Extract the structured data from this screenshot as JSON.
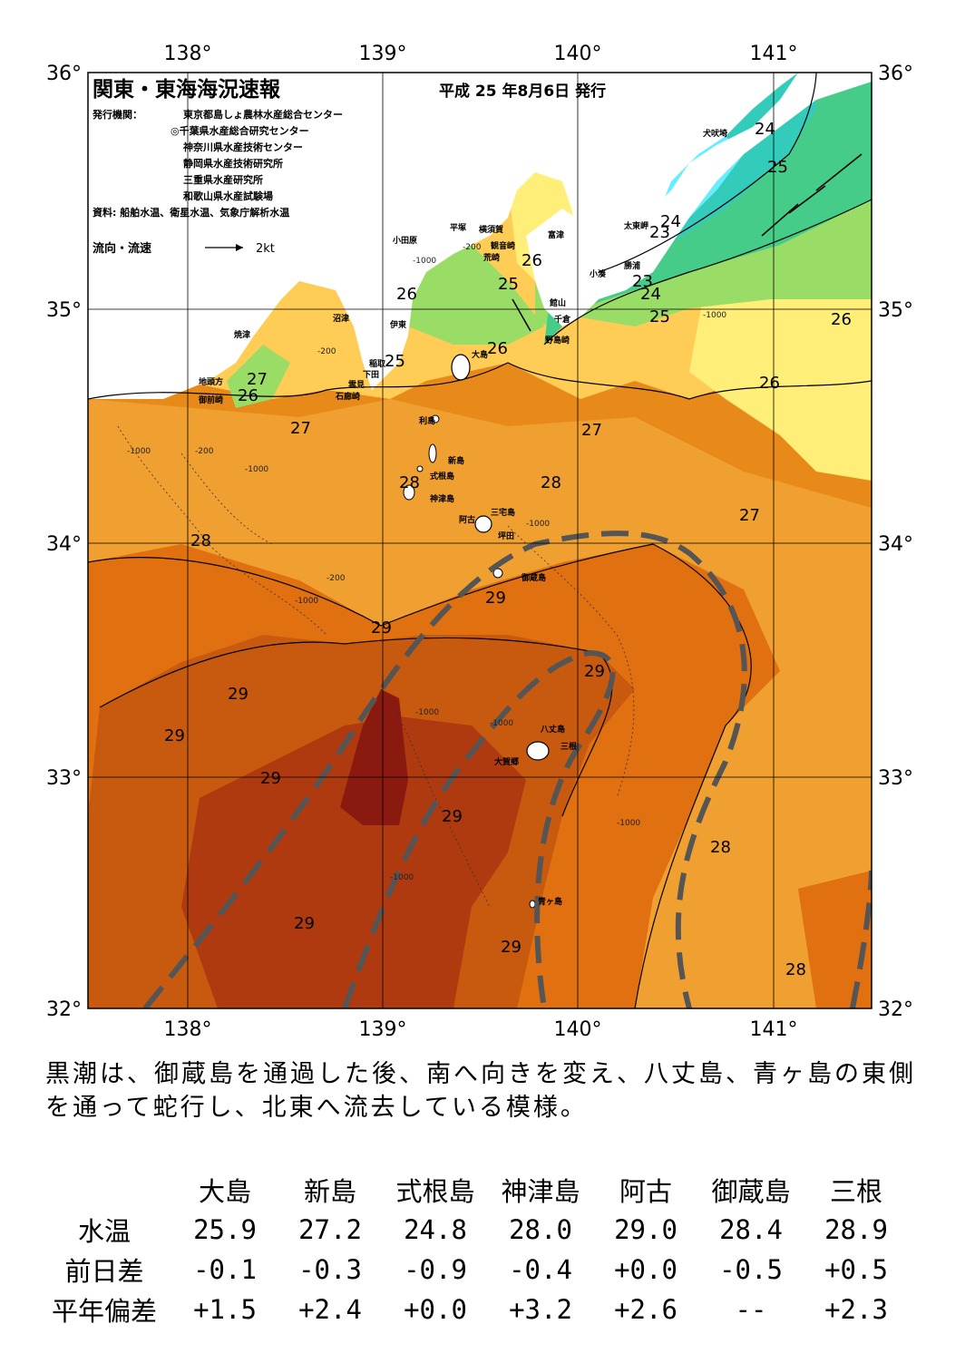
{
  "title": "関東・東海海況速報",
  "issue_date": "平成 25 年8月6日 発行",
  "publishers_label": "発行機関：",
  "publishers": [
    "東京都島しょ農林水産総合センター",
    "◎千葉県水産総合研究センター",
    "神奈川県水産技術センター",
    "静岡県水産技術研究所",
    "三重県水産研究所",
    "和歌山県水産試験場"
  ],
  "source": "資料: 船舶水温、衛星水温、気象庁解析水温",
  "flow_legend": {
    "label": "流向・流速",
    "value": "2kt"
  },
  "axes": {
    "lon_ticks": [
      "138°",
      "139°",
      "140°",
      "141°"
    ],
    "lat_ticks": [
      "36°",
      "35°",
      "34°",
      "33°",
      "32°"
    ]
  },
  "place_labels": [
    "犬吠埼",
    "太東岬",
    "勝浦",
    "小湊",
    "富津",
    "館山",
    "千倉",
    "野島崎",
    "横須賀",
    "観音崎",
    "荒崎",
    "平塚",
    "小田原",
    "沼津",
    "伊東",
    "稲取",
    "下田",
    "雲見",
    "石廊崎",
    "焼津",
    "地頭方",
    "御前崎",
    "大島",
    "利島",
    "新島",
    "式根島",
    "神津島",
    "三宅島",
    "阿古",
    "坪田",
    "御蔵島",
    "八丈島",
    "三根",
    "大賀郷",
    "青ヶ島"
  ],
  "depth_labels": [
    "-200",
    "-1000"
  ],
  "isotherm_labels": [
    "24",
    "25",
    "23",
    "24",
    "23",
    "24",
    "26",
    "25",
    "25",
    "26",
    "26",
    "25",
    "26",
    "27",
    "26",
    "27",
    "27",
    "26",
    "28",
    "28",
    "27",
    "28",
    "29",
    "29",
    "29",
    "29",
    "29",
    "29",
    "29",
    "29",
    "28",
    "28",
    "29"
  ],
  "summary": "黒潮は、御蔵島を通過した後、南へ向きを変え、八丈島、青ヶ島の東側を通って蛇行し、北東へ流去している模様。",
  "table": {
    "stations": [
      "大島",
      "新島",
      "式根島",
      "神津島",
      "阿古",
      "御蔵島",
      "三根"
    ],
    "rows": [
      {
        "label": "水温",
        "values": [
          "25.9",
          "27.2",
          "24.8",
          "28.0",
          "29.0",
          "28.4",
          "28.9"
        ]
      },
      {
        "label": "前日差",
        "values": [
          "-0.1",
          "-0.3",
          "-0.9",
          "-0.4",
          "+0.0",
          "-0.5",
          "+0.5"
        ]
      },
      {
        "label": "平年偏差",
        "values": [
          "+1.5",
          "+2.4",
          "+0.0",
          "+3.2",
          "+2.6",
          "--",
          "+2.3"
        ]
      }
    ]
  },
  "colors": {
    "t23": "#66eeff",
    "t24": "#33ccbb",
    "t25": "#44cc88",
    "t26": "#99dd66",
    "t27": "#ffee77",
    "t27b": "#ffcc55",
    "t28": "#f0a030",
    "t28b": "#e88a1a",
    "t29": "#e07010",
    "t29b": "#c85a10",
    "t30": "#b03a10",
    "t31": "#8a1a10",
    "land": "#ffffff",
    "kuroshio_axis": "#555555"
  }
}
